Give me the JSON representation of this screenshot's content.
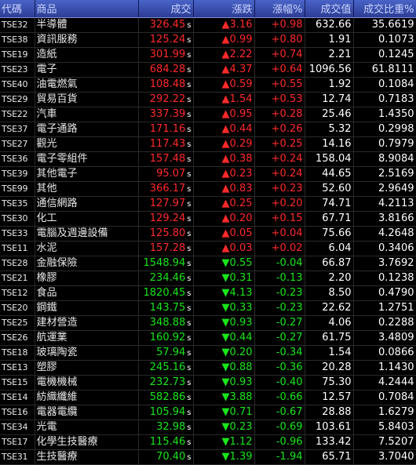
{
  "headers": [
    "代碼",
    "商品",
    "成交",
    "漲跌",
    "漲幅%",
    "成交值",
    "成交比重%"
  ],
  "colors": {
    "up": "#ff2a2a",
    "down": "#19e619",
    "header_bg": "#2c3d94",
    "background": "#000000"
  },
  "rows": [
    {
      "code": "TSE32",
      "name": "半導體",
      "price": "326.45",
      "change": "▲3.16",
      "pct": "+0.98",
      "value": "632.66",
      "weight": "35.6619",
      "dir": "up"
    },
    {
      "code": "TSE38",
      "name": "資訊服務",
      "price": "125.24",
      "change": "▲0.99",
      "pct": "+0.80",
      "value": "1.91",
      "weight": "0.1073",
      "dir": "up"
    },
    {
      "code": "TSE19",
      "name": "造紙",
      "price": "301.99",
      "change": "▲2.22",
      "pct": "+0.74",
      "value": "2.21",
      "weight": "0.1245",
      "dir": "up"
    },
    {
      "code": "TSE23",
      "name": "電子",
      "price": "684.28",
      "change": "▲4.37",
      "pct": "+0.64",
      "value": "1096.56",
      "weight": "61.8111",
      "dir": "up"
    },
    {
      "code": "TSE40",
      "name": "油電燃氣",
      "price": "108.48",
      "change": "▲0.59",
      "pct": "+0.55",
      "value": "1.92",
      "weight": "0.1084",
      "dir": "up"
    },
    {
      "code": "TSE29",
      "name": "貿易百貨",
      "price": "292.22",
      "change": "▲1.54",
      "pct": "+0.53",
      "value": "12.74",
      "weight": "0.7183",
      "dir": "up"
    },
    {
      "code": "TSE22",
      "name": "汽車",
      "price": "337.39",
      "change": "▲0.95",
      "pct": "+0.28",
      "value": "25.46",
      "weight": "1.4350",
      "dir": "up"
    },
    {
      "code": "TSE37",
      "name": "電子通路",
      "price": "171.16",
      "change": "▲0.44",
      "pct": "+0.26",
      "value": "5.32",
      "weight": "0.2998",
      "dir": "up"
    },
    {
      "code": "TSE27",
      "name": "觀光",
      "price": "117.43",
      "change": "▲0.29",
      "pct": "+0.25",
      "value": "14.16",
      "weight": "0.7979",
      "dir": "up"
    },
    {
      "code": "TSE36",
      "name": "電子零組件",
      "price": "157.48",
      "change": "▲0.38",
      "pct": "+0.24",
      "value": "158.04",
      "weight": "8.9084",
      "dir": "up"
    },
    {
      "code": "TSE39",
      "name": "其他電子",
      "price": "95.07",
      "change": "▲0.23",
      "pct": "+0.24",
      "value": "44.65",
      "weight": "2.5169",
      "dir": "up"
    },
    {
      "code": "TSE99",
      "name": "其他",
      "price": "366.17",
      "change": "▲0.83",
      "pct": "+0.23",
      "value": "52.60",
      "weight": "2.9649",
      "dir": "up"
    },
    {
      "code": "TSE35",
      "name": "通信網路",
      "price": "127.97",
      "change": "▲0.25",
      "pct": "+0.20",
      "value": "74.71",
      "weight": "4.2113",
      "dir": "up"
    },
    {
      "code": "TSE30",
      "name": "化工",
      "price": "129.24",
      "change": "▲0.20",
      "pct": "+0.15",
      "value": "67.71",
      "weight": "3.8166",
      "dir": "up"
    },
    {
      "code": "TSE33",
      "name": "電腦及週邊設備",
      "price": "125.80",
      "change": "▲0.05",
      "pct": "+0.04",
      "value": "75.66",
      "weight": "4.2648",
      "dir": "up"
    },
    {
      "code": "TSE11",
      "name": "水泥",
      "price": "157.28",
      "change": "▲0.03",
      "pct": "+0.02",
      "value": "6.04",
      "weight": "0.3406",
      "dir": "up"
    },
    {
      "code": "TSE28",
      "name": "金融保險",
      "price": "1548.94",
      "change": "▼0.55",
      "pct": "-0.04",
      "value": "66.87",
      "weight": "3.7692",
      "dir": "down"
    },
    {
      "code": "TSE21",
      "name": "橡膠",
      "price": "234.46",
      "change": "▼0.31",
      "pct": "-0.13",
      "value": "2.20",
      "weight": "0.1238",
      "dir": "down"
    },
    {
      "code": "TSE12",
      "name": "食品",
      "price": "1820.45",
      "change": "▼4.13",
      "pct": "-0.23",
      "value": "8.50",
      "weight": "0.4790",
      "dir": "down"
    },
    {
      "code": "TSE20",
      "name": "鋼鐵",
      "price": "143.75",
      "change": "▼0.33",
      "pct": "-0.23",
      "value": "22.62",
      "weight": "1.2751",
      "dir": "down"
    },
    {
      "code": "TSE25",
      "name": "建材營造",
      "price": "348.88",
      "change": "▼0.93",
      "pct": "-0.27",
      "value": "4.06",
      "weight": "0.2288",
      "dir": "down"
    },
    {
      "code": "TSE26",
      "name": "航運業",
      "price": "160.92",
      "change": "▼0.44",
      "pct": "-0.27",
      "value": "61.75",
      "weight": "3.4809",
      "dir": "down"
    },
    {
      "code": "TSE18",
      "name": "玻璃陶瓷",
      "price": "57.94",
      "change": "▼0.20",
      "pct": "-0.34",
      "value": "1.54",
      "weight": "0.0866",
      "dir": "down"
    },
    {
      "code": "TSE13",
      "name": "塑膠",
      "price": "245.16",
      "change": "▼0.88",
      "pct": "-0.36",
      "value": "20.28",
      "weight": "1.1430",
      "dir": "down"
    },
    {
      "code": "TSE15",
      "name": "電機機械",
      "price": "232.73",
      "change": "▼0.93",
      "pct": "-0.40",
      "value": "75.30",
      "weight": "4.2444",
      "dir": "down"
    },
    {
      "code": "TSE14",
      "name": "紡織纖維",
      "price": "582.86",
      "change": "▼3.88",
      "pct": "-0.66",
      "value": "12.57",
      "weight": "0.7084",
      "dir": "down"
    },
    {
      "code": "TSE16",
      "name": "電器電纜",
      "price": "105.94",
      "change": "▼0.71",
      "pct": "-0.67",
      "value": "28.88",
      "weight": "1.6279",
      "dir": "down"
    },
    {
      "code": "TSE34",
      "name": "光電",
      "price": "32.98",
      "change": "▼0.23",
      "pct": "-0.69",
      "value": "103.61",
      "weight": "5.8403",
      "dir": "down"
    },
    {
      "code": "TSE17",
      "name": "化學生技醫療",
      "price": "115.46",
      "change": "▼1.12",
      "pct": "-0.96",
      "value": "133.42",
      "weight": "7.5207",
      "dir": "down"
    },
    {
      "code": "TSE31",
      "name": "生技醫療",
      "price": "70.40",
      "change": "▼1.39",
      "pct": "-1.94",
      "value": "65.71",
      "weight": "3.7040",
      "dir": "down"
    }
  ],
  "price_suffix": "s"
}
